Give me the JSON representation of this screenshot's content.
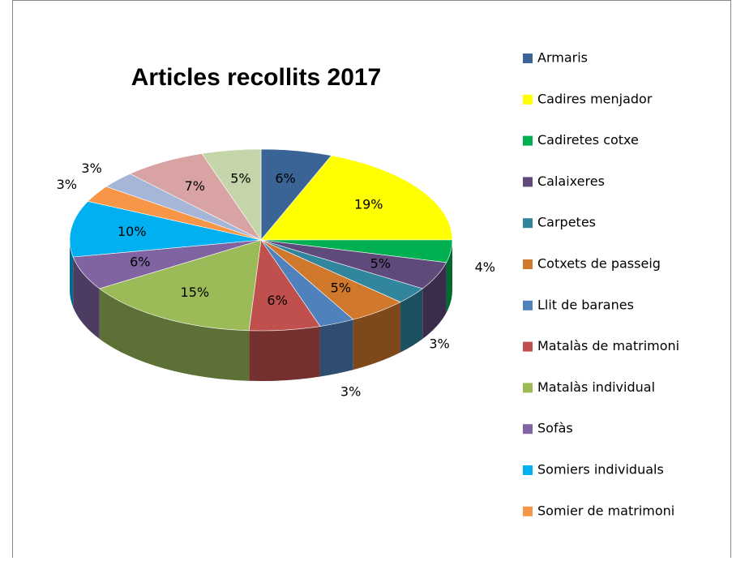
{
  "chart_data": {
    "type": "pie",
    "title": "Articles recollits 2017",
    "categories": [
      "Armaris",
      "Cadires menjador",
      "Cadiretes cotxe",
      "Calaixeres",
      "Carpetes",
      "Cotxets de passeig",
      "Llit de baranes",
      "Matalàs de matrimoni",
      "Matalàs individual",
      "Sofàs",
      "Somiers individuals",
      "Somier de matrimoni",
      null,
      null,
      null
    ],
    "values": [
      6,
      19,
      4,
      5,
      3,
      5,
      3,
      6,
      15,
      6,
      10,
      3,
      3,
      7,
      5
    ],
    "value_labels": [
      "6%",
      "19%",
      "4%",
      "5%",
      "3%",
      "5%",
      "3%",
      "6%",
      "15%",
      "6%",
      "10%",
      "3%",
      "3%",
      "7%",
      "5%"
    ],
    "colors": [
      "#3b6496",
      "#ffff00",
      "#00b050",
      "#604a7b",
      "#31859c",
      "#d0782c",
      "#4f81bd",
      "#c0504d",
      "#9bbb59",
      "#8064a2",
      "#00b0f0",
      "#f79646",
      "#a5b6d8",
      "#d9a3a3",
      "#c4d5a9"
    ],
    "legend": "right"
  }
}
